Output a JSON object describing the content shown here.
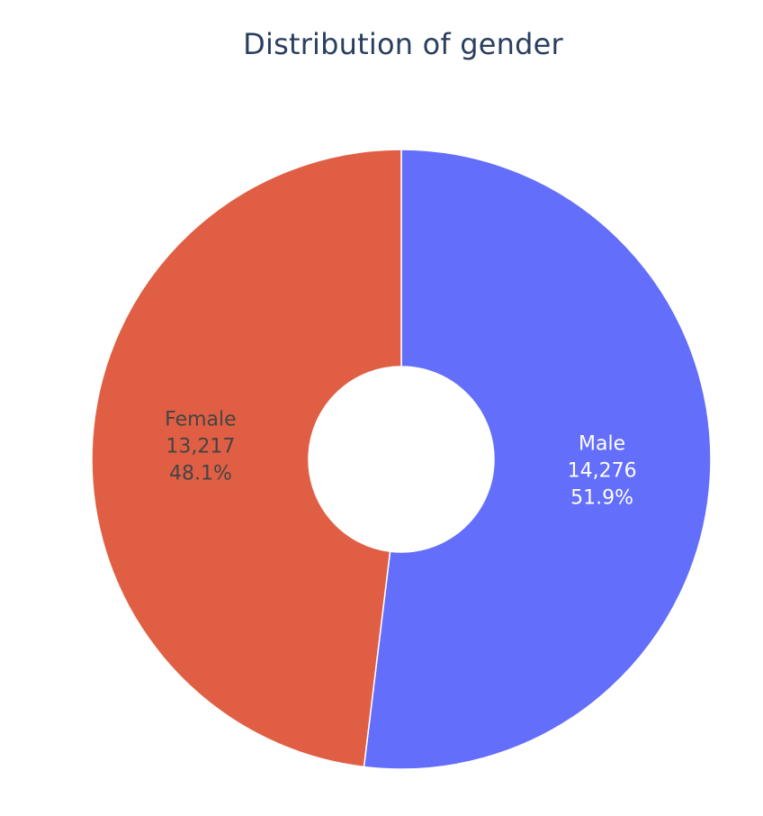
{
  "chart_data": {
    "type": "pie",
    "title": "Distribution of gender",
    "slices": [
      {
        "label": "Male",
        "value": 14276,
        "value_text": "14,276",
        "percent_text": "51.9%",
        "color": "#636efa",
        "text_color": "#ffffff"
      },
      {
        "label": "Female",
        "value": 13217,
        "value_text": "13,217",
        "percent_text": "48.1%",
        "color": "#e05f44",
        "text_color": "#444444"
      }
    ],
    "hole": true,
    "legend": "none"
  }
}
